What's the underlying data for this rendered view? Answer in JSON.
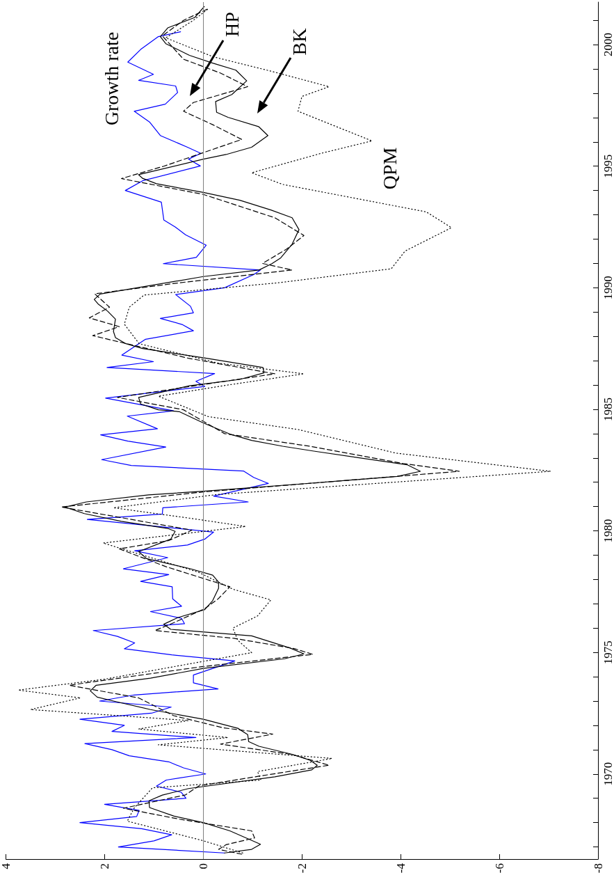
{
  "chart_data": {
    "type": "line",
    "orientation": "horizontal",
    "ylim": [
      1966.5,
      2001.75
    ],
    "yticks": [
      {
        "value": 1967,
        "label": null
      },
      {
        "value": 1968,
        "label": null
      },
      {
        "value": 1969,
        "label": null
      },
      1970,
      {
        "value": 1971,
        "label": null
      },
      {
        "value": 1972,
        "label": null
      },
      {
        "value": 1973,
        "label": null
      },
      {
        "value": 1974,
        "label": null
      },
      1975,
      {
        "value": 1976,
        "label": null
      },
      {
        "value": 1977,
        "label": null
      },
      {
        "value": 1978,
        "label": null
      },
      {
        "value": 1979,
        "label": null
      },
      1980,
      {
        "value": 1981,
        "label": null
      },
      {
        "value": 1982,
        "label": null
      },
      {
        "value": 1983,
        "label": null
      },
      {
        "value": 1984,
        "label": null
      },
      1985,
      {
        "value": 1986,
        "label": null
      },
      {
        "value": 1987,
        "label": null
      },
      {
        "value": 1988,
        "label": null
      },
      {
        "value": 1989,
        "label": null
      },
      1990,
      {
        "value": 1991,
        "label": null
      },
      {
        "value": 1992,
        "label": null
      },
      {
        "value": 1993,
        "label": null
      },
      {
        "value": 1994,
        "label": null
      },
      1995,
      {
        "value": 1996,
        "label": null
      },
      {
        "value": 1997,
        "label": null
      },
      {
        "value": 1998,
        "label": null
      },
      {
        "value": 1999,
        "label": null
      },
      2000,
      {
        "value": 2001,
        "label": null
      }
    ],
    "xlim": [
      4,
      -8
    ],
    "xticks": [
      -8,
      -6,
      -4,
      -2,
      0,
      2,
      4
    ],
    "grid": false,
    "legend": false,
    "marker": "none",
    "ref_lines": [
      {
        "axis": "x",
        "value": 0,
        "color": "#808080"
      }
    ],
    "annotations": [
      "Growth rate",
      "HP",
      "BK",
      "QPM"
    ],
    "series": [
      {
        "color": "#0000ff",
        "line_style": "solid",
        "x": [
          1966.75,
          1967.0,
          1967.25,
          1967.5,
          1967.75,
          1968.0,
          1968.25,
          1968.5,
          1968.75,
          1969.0,
          1969.25,
          1969.5,
          1969.75,
          1970.0,
          1970.25,
          1970.5,
          1970.75,
          1971.0,
          1971.25,
          1971.5,
          1971.75,
          1972.0,
          1972.25,
          1972.5,
          1972.75,
          1973.0,
          1973.25,
          1973.5,
          1973.75,
          1974.07,
          1974.65,
          1974.9,
          1975.15,
          1975.39,
          1975.66,
          1975.9,
          1976.18,
          1976.4,
          1976.68,
          1976.9,
          1977.2,
          1977.7,
          1977.92,
          1978.2,
          1978.44,
          1978.9,
          1979.18,
          1979.42,
          1979.66,
          1979.95,
          1980.47,
          1980.69,
          1980.95,
          1981.19,
          1981.43,
          1981.95,
          1982.2,
          1982.46,
          1982.69,
          1982.93,
          1983.45,
          1983.69,
          1983.95,
          1984.2,
          1984.72,
          1984.94,
          1985.46,
          1985.94,
          1986.15,
          1986.47,
          1986.72,
          1986.96,
          1987.23,
          1987.88,
          1988.23,
          1988.49,
          1988.74,
          1988.97,
          1989.24,
          1989.72,
          1990.0,
          1990.54,
          1990.73,
          1990.99,
          1991.25,
          1991.75,
          1992.18,
          1992.5,
          1992.79,
          1993.52,
          1994.0,
          1994.4,
          1995.01,
          1995.29,
          1995.53,
          1995.78,
          1996.26,
          1996.82,
          1997.26,
          1997.55,
          1998.03,
          1998.3,
          1998.53,
          1998.78,
          1999.28,
          1999.8,
          2000.33,
          2000.53
        ],
        "values": [
          -0.43,
          1.72,
          1.0,
          0.64,
          1.25,
          2.5,
          1.35,
          1.3,
          2.0,
          0.35,
          0.45,
          0.95,
          0.75,
          -0.05,
          0.4,
          0.7,
          1.5,
          1.85,
          2.4,
          0.15,
          1.85,
          1.6,
          2.5,
          1.05,
          0.65,
          2.1,
          1.4,
          -0.3,
          0.2,
          0.2,
          -0.64,
          0.64,
          1.6,
          1.39,
          1.74,
          2.23,
          0.38,
          0.44,
          1.07,
          0.44,
          0.62,
          0.63,
          1.27,
          0.7,
          1.62,
          0.72,
          1.39,
          0.32,
          -0.03,
          -0.21,
          2.35,
          0.83,
          0.82,
          -0.91,
          -0.21,
          -1.32,
          -1.02,
          -0.82,
          1.46,
          2.06,
          0.76,
          1.53,
          2.08,
          0.93,
          1.54,
          0.6,
          1.98,
          -0.03,
          0.15,
          -0.23,
          1.95,
          1.01,
          1.65,
          1.17,
          0.2,
          0.43,
          0.87,
          0.2,
          0.26,
          0.56,
          -0.43,
          -1.02,
          -1.16,
          0.81,
          0.14,
          -0.06,
          0.36,
          0.57,
          0.8,
          0.85,
          1.58,
          1.23,
          0.06,
          0.3,
          0.05,
          0.32,
          0.87,
          1.09,
          1.4,
          0.77,
          0.52,
          0.56,
          1.31,
          1.01,
          1.53,
          1.27,
          0.91,
          0.46
        ]
      },
      {
        "color": "#000000",
        "line_style": "dashed",
        "x": [
          1966.7,
          1966.9,
          1967.09,
          1967.37,
          1967.66,
          1968.14,
          1968.59,
          1969.14,
          1969.51,
          1969.91,
          1970.36,
          1970.8,
          1971.23,
          1971.64,
          1971.9,
          1972.4,
          1973.13,
          1973.65,
          1974.0,
          1974.42,
          1974.92,
          1975.16,
          1975.58,
          1975.9,
          1976.22,
          1976.8,
          1977.2,
          1977.7,
          1978.53,
          1979.26,
          1979.6,
          1980.03,
          1980.98,
          1981.6,
          1982.45,
          1982.77,
          1983.48,
          1984.0,
          1984.98,
          1985.49,
          1986.46,
          1987.1,
          1988.03,
          1988.4,
          1988.76,
          1989.2,
          1989.75,
          1990.2,
          1990.73,
          1991.0,
          1991.59,
          1992.15,
          1992.88,
          1993.84,
          1994.49,
          1995.0,
          1996.1,
          1996.7,
          1997.26,
          1997.62,
          1998.27,
          1998.83,
          1999.4,
          2000.36,
          2001.0,
          2001.49
        ],
        "values": [
          -0.78,
          -0.31,
          -0.46,
          -1.04,
          -0.98,
          0.48,
          1.62,
          0.36,
          0.09,
          -1.13,
          -2.55,
          -1.8,
          -0.35,
          -1.41,
          -0.4,
          0.6,
          1.31,
          2.72,
          1.5,
          0,
          -2.22,
          -1.84,
          -0.62,
          0.98,
          0.6,
          -0.03,
          -0.3,
          -0.54,
          0.76,
          1.7,
          0.7,
          0.23,
          2.88,
          0,
          -5.19,
          -4.05,
          -2.16,
          -0.43,
          0.4,
          1.74,
          -1.45,
          0.3,
          2.24,
          1.7,
          2.31,
          1.9,
          2.2,
          0.5,
          -1.8,
          -1.2,
          -1.69,
          -2.04,
          -1.45,
          0,
          1.66,
          0.8,
          -0.78,
          -0.2,
          0.4,
          0.2,
          -0.9,
          -0.35,
          0.4,
          0.83,
          0.4,
          -0.11
        ]
      },
      {
        "color": "#000000",
        "line_style": "solid",
        "x": [
          1966.75,
          1966.9,
          1967.11,
          1967.66,
          1968.0,
          1968.27,
          1968.62,
          1968.9,
          1969.13,
          1969.4,
          1969.88,
          1970.17,
          1970.36,
          1970.57,
          1970.81,
          1971.14,
          1971.33,
          1971.62,
          1971.88,
          1972.25,
          1972.65,
          1973.0,
          1973.16,
          1973.42,
          1973.65,
          1973.94,
          1974.34,
          1974.74,
          1974.94,
          1975.18,
          1975.68,
          1975.95,
          1976.16,
          1976.43,
          1976.76,
          1977.13,
          1977.64,
          1977.89,
          1978.18,
          1978.44,
          1978.86,
          1979.15,
          1979.66,
          1979.98,
          1980.1,
          1980.39,
          1980.71,
          1980.98,
          1981.19,
          1981.48,
          1981.63,
          1981.92,
          1982.24,
          1982.45,
          1982.72,
          1983.28,
          1983.48,
          1983.72,
          1983.98,
          1984.44,
          1984.9,
          1984.98,
          1985.22,
          1985.49,
          1985.97,
          1986.23,
          1986.5,
          1986.72,
          1987.12,
          1987.5,
          1987.71,
          1987.95,
          1988.2,
          1988.71,
          1989.04,
          1989.33,
          1989.52,
          1989.74,
          1990.46,
          1990.73,
          1990.99,
          1991.23,
          1991.79,
          1992.39,
          1992.88,
          1993.2,
          1993.6,
          1993.92,
          1994.28,
          1994.5,
          1994.65,
          1995.29,
          1995.48,
          1995.78,
          1996.26,
          1996.63,
          1997.01,
          1997.22,
          1997.66,
          1997.95,
          1998.51,
          1998.95,
          1999.24,
          1999.56,
          2000.04,
          2000.33,
          2000.69,
          2001.12,
          2001.57
        ],
        "values": [
          -0.43,
          -0.98,
          -1.16,
          -0.54,
          0,
          0.6,
          1.09,
          1.1,
          0.83,
          0.3,
          -1.45,
          -2.2,
          -2.31,
          -2.16,
          -1.8,
          -1.13,
          -0.92,
          -0.9,
          -0.7,
          0,
          1.07,
          1.82,
          2.15,
          2.29,
          2.17,
          1.07,
          0,
          -1.65,
          -2.04,
          -1.76,
          -0.98,
          0.66,
          0.8,
          0.52,
          -0.03,
          -0.19,
          -0.31,
          -0.31,
          -0.19,
          0.26,
          1.15,
          1.31,
          0.66,
          0.57,
          0.72,
          1.66,
          2.41,
          2.8,
          2.37,
          1.11,
          0,
          -1.92,
          -3.93,
          -4.4,
          -4.13,
          -2.24,
          -1.61,
          -0.98,
          -0.54,
          0,
          0.48,
          0.91,
          1.27,
          1.31,
          0.28,
          -0.74,
          -1.23,
          -1.21,
          0,
          1.23,
          1.58,
          1.78,
          1.82,
          1.78,
          1.94,
          2.13,
          2.21,
          2.09,
          0,
          -1.13,
          -1.39,
          -1.57,
          -1.8,
          -1.94,
          -1.8,
          -1.37,
          -0.74,
          0,
          0.95,
          1.23,
          1.31,
          0,
          -0.46,
          -0.98,
          -1.31,
          -1.12,
          -0.5,
          -0.27,
          -0.25,
          -0.58,
          -0.88,
          -0.66,
          -0.19,
          0.28,
          0.76,
          0.87,
          0.72,
          0.17,
          -0.02
        ]
      },
      {
        "color": "#000000",
        "line_style": "dotted",
        "x": [
          1966.75,
          1967.26,
          1968.06,
          1968.6,
          1969.43,
          1969.75,
          1970.1,
          1970.64,
          1971.2,
          1971.5,
          1971.85,
          1972.2,
          1972.65,
          1973.13,
          1973.45,
          1973.9,
          1974.5,
          1974.99,
          1975.5,
          1976.0,
          1976.5,
          1977.16,
          1977.6,
          1978.3,
          1979.5,
          1980.18,
          1980.5,
          1980.95,
          1981.5,
          1982.45,
          1983.2,
          1984.17,
          1984.7,
          1985.54,
          1986.0,
          1986.46,
          1986.9,
          1987.7,
          1988.5,
          1989.2,
          1989.7,
          1990.2,
          1990.78,
          1991.51,
          1992.47,
          1993.12,
          1994.25,
          1994.73,
          1995.53,
          1996.04,
          1997.26,
          1997.87,
          1998.27,
          1998.91,
          1999.5,
          2000.28,
          2001.0,
          2001.49
        ],
        "values": [
          -0.8,
          0.01,
          1.54,
          1.4,
          1.03,
          -1.17,
          -1.1,
          -2.61,
          0.91,
          -0.5,
          1.31,
          0.3,
          3.5,
          2.49,
          3.75,
          2.0,
          0.36,
          -0.98,
          -0.7,
          -0.6,
          -1.1,
          -1.37,
          -0.6,
          0.1,
          2.03,
          -0.86,
          0.2,
          1.82,
          -0.3,
          -7.04,
          -3.9,
          -1.92,
          -0.1,
          0.91,
          -0.5,
          -2.04,
          -0.3,
          1.3,
          1.6,
          1.5,
          1.2,
          -1.5,
          -3.81,
          -4.09,
          -5.03,
          -4.52,
          -1.61,
          -0.98,
          -2.39,
          -3.42,
          -1.92,
          -2.0,
          -2.55,
          -1.37,
          -0.2,
          0.76,
          0.2,
          -0.11
        ]
      }
    ]
  }
}
